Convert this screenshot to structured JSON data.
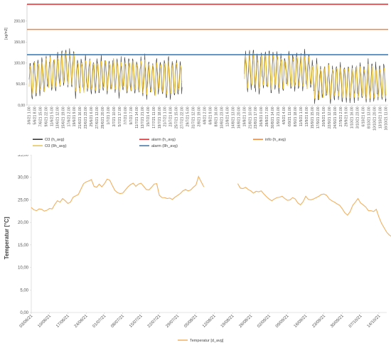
{
  "chart_data": [
    {
      "type": "line",
      "ylabel": "[ug/m3]",
      "ylim": [
        0,
        240
      ],
      "yticks": [
        "0,00",
        "50,00",
        "100,00",
        "150,00",
        "200,00"
      ],
      "ytick_values": [
        0,
        50,
        100,
        150,
        200
      ],
      "thresholds": [
        {
          "name": "alarm  (h_avg)",
          "value": 240,
          "color": "#e8262b"
        },
        {
          "name": "info  (h_avg)",
          "value": 180,
          "color": "#f0873a"
        },
        {
          "name": "alarm  (8h_avg)",
          "value": 120,
          "color": "#2e75b6"
        }
      ],
      "series": [
        {
          "name": "O3  (h_avg)",
          "color": "#2b2b2b"
        },
        {
          "name": "O3  (8h_avg)",
          "color": "#f2c233"
        }
      ],
      "x_start": "3/6/21 1.00",
      "x_gap": [
        "27/7/21 09.00",
        "19/8/21 09.00"
      ],
      "x_end": "16/10/21 11.00",
      "xticks": [
        "3/6/21 1.00",
        "5/6/21 8.00",
        "7/6/21 15.00",
        "9/6/21 22.00",
        "11/6/21 5.00",
        "13/6/21 12.00",
        "15/6/21 19.00",
        "17/6/21 2.00",
        "19/6/21 9.00",
        "21/6/21 16.00",
        "23/6/21 23.00",
        "25/6/21 6.00",
        "27/6/21 13.00",
        "29/6/21 20.00",
        "1/7/21 3.00",
        "3/7/21 10.00",
        "5/7/21 17.00",
        "7/7/21 0.00",
        "9/7/21 7.00",
        "11/7/21 14.00",
        "13/7/21 21.00",
        "15/7/21 4.00",
        "17/7/21 11.00",
        "19/7/21 18.00",
        "21/7/21 1.00",
        "23/7/21 8.00",
        "25/7/21 15.00",
        "27/7/21 22.00",
        "29/7/21 5.00",
        "31/7/21 12.00",
        "2/8/21 19.00",
        "4/8/21 2.00",
        "6/8/21 9.00",
        "8/8/21 16.00",
        "10/8/21 23.00",
        "12/8/21 6.00",
        "14/8/21 13.00",
        "16/8/21 20.00",
        "19/8/21 3.00",
        "21/8/21 10.00",
        "23/8/21 17.00",
        "26/8/21 0.00",
        "28/8/21 7.00",
        "30/8/21 14.00",
        "1/9/21 21.00",
        "4/9/21 4.00",
        "6/9/21 11.00",
        "8/9/21 18.00",
        "11/9/21 1.00",
        "13/9/21 8.00",
        "15/9/21 15.00",
        "17/9/21 22.00",
        "20/9/21 5.00",
        "22/9/21 12.00",
        "24/9/21 19.00",
        "27/9/21 2.00",
        "29/9/21 9.00",
        "1/10/21 16.00",
        "3/10/21 23.00",
        "6/10/21 6.00",
        "8/10/21 13.00",
        "10/10/21 20.00",
        "13/10/21 3.00",
        "16/10/21 11.00"
      ]
    },
    {
      "type": "line",
      "ylabel": "Temperatur  [°C]",
      "ylim": [
        0,
        35
      ],
      "yticks": [
        "0,00",
        "5,00",
        "10,00",
        "15,00",
        "20,00",
        "25,00",
        "30,00",
        "35,00"
      ],
      "ytick_values": [
        0,
        5,
        10,
        15,
        20,
        25,
        30,
        35
      ],
      "xticks": [
        "03/06/21",
        "10/06/21",
        "17/06/21",
        "24/06/21",
        "01/07/21",
        "08/07/21",
        "15/07/21",
        "22/07/21",
        "29/07/21",
        "05/08/21",
        "12/08/21",
        "19/08/21",
        "26/08/21",
        "02/09/21",
        "09/09/21",
        "16/09/21",
        "23/09/21",
        "30/09/21",
        "07/10/21",
        "14/10/21"
      ],
      "series": [
        {
          "name": "Temperatur  [d_avg]",
          "color": "#f0b060",
          "segments": [
            {
              "start_day": 0,
              "values": [
                23.3,
                22.8,
                22.6,
                23.0,
                22.9,
                22.5,
                22.7,
                23.1,
                23.0,
                24.0,
                24.8,
                24.5,
                25.3,
                24.8,
                24.2,
                24.5,
                25.6,
                25.9,
                26.2,
                27.4,
                28.6,
                29.0,
                29.2,
                29.5,
                28.0,
                27.8,
                28.5,
                27.9,
                28.6,
                29.6,
                29.4,
                28.2,
                27.1,
                26.6,
                26.4,
                26.5,
                27.2,
                27.9,
                28.4,
                28.7,
                28.0,
                28.5,
                28.7,
                28.0,
                27.3,
                27.2,
                27.8,
                28.5,
                28.6,
                26.0,
                25.5,
                25.5,
                25.3,
                25.4,
                25.1,
                25.6,
                26.0,
                26.4,
                27.0,
                27.3,
                27.0,
                27.2,
                27.8,
                28.3,
                30.2,
                29.0,
                27.9
              ]
            },
            {
              "start_day": 79,
              "values": [
                28.6,
                27.6,
                27.5,
                27.8,
                27.3,
                27.0,
                26.5,
                26.9,
                26.8,
                27.0,
                26.3,
                25.7,
                25.2,
                24.8,
                25.2,
                25.5,
                25.6,
                25.8,
                25.3,
                24.9,
                25.0,
                25.5,
                25.2,
                24.3,
                23.9,
                24.6,
                25.8,
                25.1,
                25.0,
                25.2,
                25.5,
                25.8,
                26.2,
                26.3,
                26.0,
                25.2,
                24.8,
                24.5,
                24.1,
                23.8,
                23.0,
                22.1,
                21.6,
                22.4,
                23.8,
                24.5,
                25.3,
                24.3,
                23.9,
                23.4,
                22.6,
                22.6,
                22.4,
                22.9,
                21.2,
                19.8,
                18.8,
                17.8,
                17.2,
                16.8,
                14.8,
                14.6,
                15.0,
                16.5,
                17.0,
                16.8,
                15.2,
                15.0,
                15.5,
                16.2,
                17.0,
                17.8,
                15.6,
                15.2
              ]
            }
          ]
        }
      ]
    }
  ]
}
